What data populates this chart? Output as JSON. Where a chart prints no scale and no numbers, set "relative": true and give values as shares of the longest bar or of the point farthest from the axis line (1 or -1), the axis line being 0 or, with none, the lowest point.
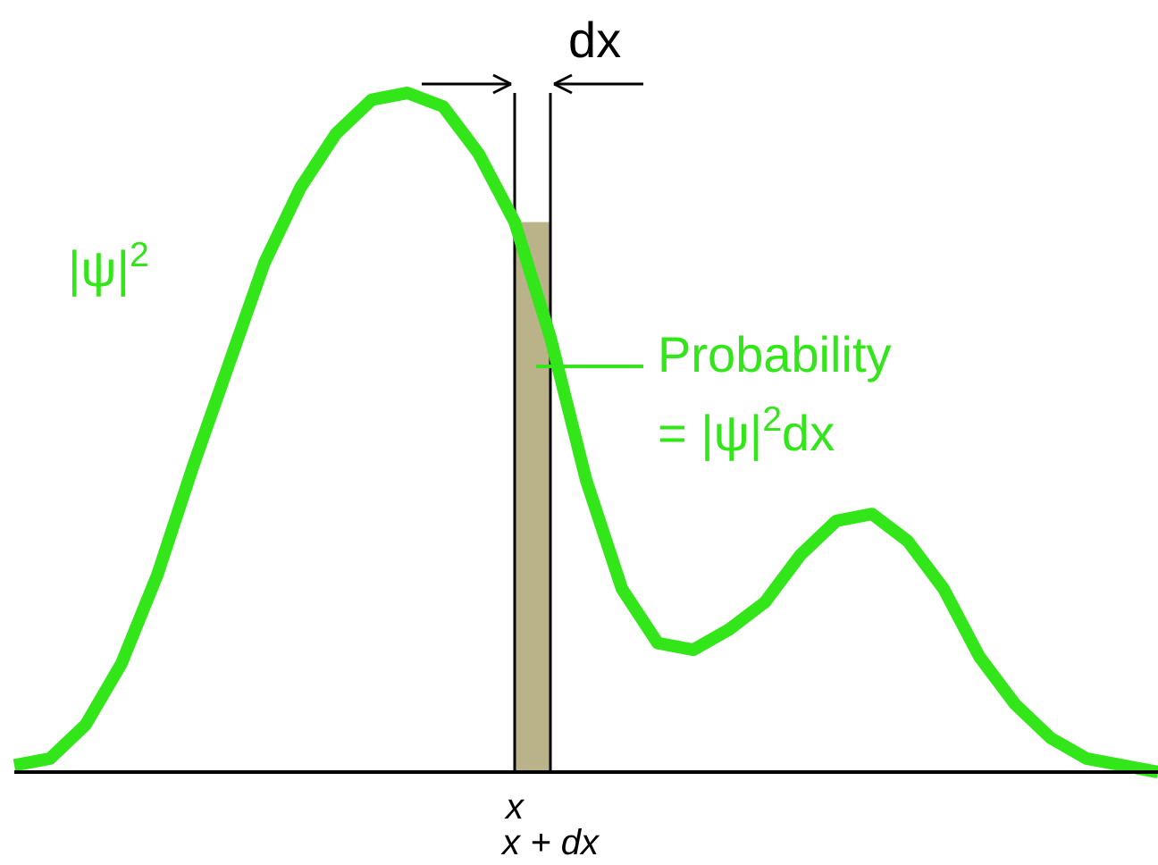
{
  "chart_data": {
    "type": "line",
    "relative": true,
    "color": "#33e619",
    "line_style": "solid",
    "marker": "none",
    "categories": [
      null,
      null,
      null,
      null,
      null,
      null,
      null,
      null,
      null,
      null,
      null,
      null,
      null,
      null,
      "x",
      "x + dx",
      null,
      null,
      null,
      null,
      null,
      null,
      null,
      null,
      null,
      null,
      null,
      null,
      null,
      null,
      null,
      null,
      null
    ],
    "values": [
      0.01,
      0.02,
      0.07,
      0.16,
      0.29,
      0.45,
      0.6,
      0.75,
      0.86,
      0.94,
      0.99,
      1,
      0.98,
      0.91,
      0.81,
      0.64,
      0.43,
      0.27,
      0.19,
      0.18,
      0.21,
      0.25,
      0.32,
      0.37,
      0.38,
      0.34,
      0.27,
      0.17,
      0.1,
      0.05,
      0.02,
      0.01,
      0
    ],
    "bands": [
      {
        "axis": "x",
        "from": "x",
        "to": "x + dx",
        "color": "#bab38a"
      }
    ],
    "ref_lines": [
      {
        "axis": "x",
        "value": "x",
        "color": "#000000"
      },
      {
        "axis": "x",
        "value": "x + dx",
        "color": "#000000"
      }
    ],
    "annotations": [
      "|ψ|$^{2}$",
      "dx",
      "Probability",
      "=  |ψ|$^{2}$dx"
    ]
  }
}
